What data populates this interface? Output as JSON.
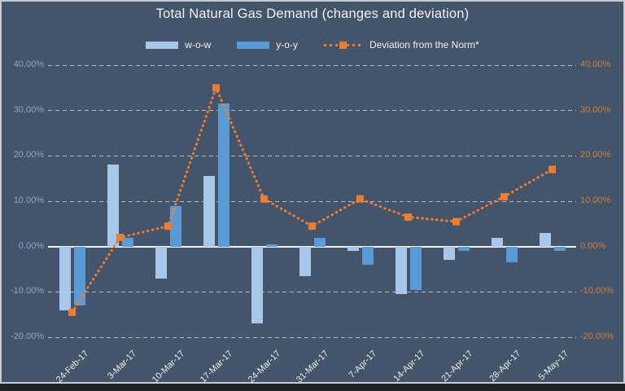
{
  "chart_data": {
    "type": "combo",
    "title": "Total Natural Gas Demand (changes and deviation)",
    "categories": [
      "24-Feb-17",
      "3-Mar-17",
      "10-Mar-17",
      "17-Mar-17",
      "24-Mar-17",
      "31-Mar-17",
      "7-Apr-17",
      "14-Apr-17",
      "21-Apr-17",
      "28-Apr-17",
      "5-May-17"
    ],
    "series": [
      {
        "name": "w-o-w",
        "type": "bar",
        "color": "#A9C7E8",
        "values": [
          -14,
          18,
          -7,
          15.5,
          -17,
          -6.5,
          -1,
          -10.5,
          -3,
          2,
          3
        ]
      },
      {
        "name": "y-o-y",
        "type": "bar",
        "color": "#5B9BD5",
        "values": [
          -13,
          2,
          9,
          31.5,
          0.5,
          2,
          -4,
          -9.5,
          -1,
          -3.5,
          -1
        ]
      },
      {
        "name": "Deviation from the Norm*",
        "type": "line",
        "line_style": "dotted",
        "marker": "square",
        "color": "#ED7D31",
        "values": [
          -14.5,
          2,
          4.5,
          35,
          10.5,
          4.5,
          10.5,
          6.5,
          5.5,
          11,
          17
        ]
      }
    ],
    "ylim": [
      -20,
      40
    ],
    "yticks": [
      40,
      30,
      20,
      10,
      0,
      -10,
      -20
    ],
    "ytick_labels": [
      "40.00%",
      "30.00%",
      "20.00%",
      "10.00%",
      "0.00%",
      "-10.00%",
      "-20.00%"
    ],
    "axis_colors": {
      "left": "#8CA7D0",
      "right": "#C9813E"
    },
    "grid": "horizontal dashed white, solid zero line",
    "legend_position": "top center",
    "background_color": "#44546A",
    "title_color": "#F2F2F2"
  }
}
